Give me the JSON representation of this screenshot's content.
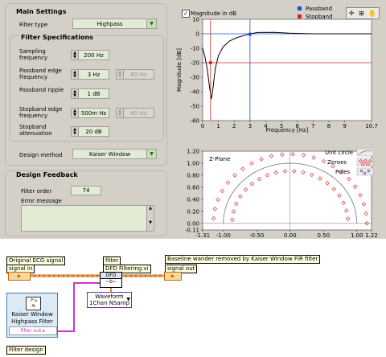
{
  "front_panel": {
    "main_settings": {
      "title": "Main Settings",
      "filter_type_label": "Filter type",
      "filter_type_value": "Highpass"
    },
    "filter_spec": {
      "title": "Filter Specifications",
      "sampling_label": "Sampling frequency",
      "sampling_value": "200 Hz",
      "passband_edge_label": "Passband edge frequency",
      "passband_edge_value": "3 Hz",
      "passband_edge_value2": "80 Hz",
      "passband_ripple_label": "Passband ripple",
      "passband_ripple_value": "1 dB",
      "stopband_edge_label": "Stopband edge frequency",
      "stopband_edge_value": "500m Hz",
      "stopband_edge_value2": "60 Hz",
      "stopband_atten_label": "Stopband attenuation",
      "stopband_atten_value": "20 dB"
    },
    "design_method_label": "Design method",
    "design_method_value": "Kaiser Window",
    "design_feedback": {
      "title": "Design Feedback",
      "filter_order_label": "Filter order",
      "filter_order_value": "74",
      "error_message_label": "Error message",
      "error_message_value": ""
    }
  },
  "magnitude_graph": {
    "checkbox_label": "Magnitude in dB",
    "checked": true,
    "legend": [
      {
        "label": "Passband",
        "color": "#1f4fcc"
      },
      {
        "label": "Stopband",
        "color": "#d42020"
      }
    ],
    "ylabel": "Magnitude [dB]",
    "xlabel": "Frequency [Hz]",
    "yticks": [
      "10",
      "0",
      "-10",
      "-20",
      "-30",
      "-40",
      "-50",
      "-60"
    ],
    "xticks": [
      "0",
      "1",
      "2",
      "3",
      "4",
      "5",
      "6",
      "7",
      "8",
      "9",
      "10.7"
    ]
  },
  "zplane_graph": {
    "title": "Z-Plane",
    "legend": [
      {
        "label": "Unit circle"
      },
      {
        "label": "Zeroes"
      },
      {
        "label": "Poles"
      }
    ],
    "yticks": [
      "1.20",
      "1.00",
      "0.80",
      "0.60",
      "0.40",
      "0.20",
      "0.00",
      "-0.11"
    ],
    "xticks": [
      "-1.31",
      "-1.00",
      "-0.50",
      "0.00",
      "0.50",
      "1.00",
      "1.22"
    ]
  },
  "chart_data": [
    {
      "type": "line",
      "title": "",
      "xlabel": "Frequency [Hz]",
      "ylabel": "Magnitude [dB]",
      "xlim": [
        0,
        10.7
      ],
      "ylim": [
        -60,
        10
      ],
      "series": [
        {
          "name": "",
          "x": [
            0,
            0.15,
            0.3,
            0.45,
            0.55,
            0.65,
            0.8,
            1.0,
            1.3,
            1.7,
            2.2,
            2.7,
            3.0,
            3.5,
            4.5,
            5.5,
            7,
            8.5,
            10.7
          ],
          "values": [
            -10,
            -16,
            -25,
            -38,
            -45,
            -38,
            -24,
            -15,
            -9,
            -5,
            -2.5,
            -1,
            0,
            0.9,
            1,
            0.4,
            0,
            0,
            0
          ]
        },
        {
          "name": "Passband",
          "x": [
            3,
            3
          ],
          "values": [
            -60,
            10
          ]
        },
        {
          "name": "Stopband",
          "x": [
            0.5,
            0.5
          ],
          "values": [
            -60,
            10
          ]
        }
      ],
      "markers": [
        {
          "series": "Passband",
          "x": 3,
          "y": -0.3
        },
        {
          "series": "Stopband",
          "x": 0.5,
          "y": -20
        }
      ],
      "hlines": [
        {
          "series": "Passband",
          "y": 0
        },
        {
          "series": "Stopband",
          "y": -20
        }
      ],
      "grid": false
    },
    {
      "type": "scatter",
      "title": "Z-Plane",
      "xlim": [
        -1.31,
        1.22
      ],
      "ylim": [
        -0.11,
        1.2
      ],
      "unit_circle": true,
      "zeroes_outer_radius": 1.15,
      "zeroes_inner_radius": 0.87,
      "zeroes_outer_angles_deg": [
        0,
        8,
        16,
        24,
        32,
        40,
        48,
        56,
        64,
        72,
        80,
        88,
        96,
        104,
        112,
        120,
        128,
        136,
        144,
        152,
        160,
        168,
        176
      ],
      "zeroes_inner_angles_deg": [
        5,
        14,
        23,
        32,
        41,
        50,
        59,
        68,
        77,
        86,
        95,
        104,
        113,
        122,
        131,
        140,
        149,
        158,
        167,
        176
      ],
      "poles": []
    }
  ],
  "block_diagram": {
    "original_ecg_label": "Original ECG signal",
    "signal_in_label": "signal in",
    "filter_label": "filter",
    "dfd_filtering_label": "DFD Filtering.vi",
    "baseline_label": "Baseline wander removed by Kaiser Window FIR filter",
    "signal_out_label": "signal out",
    "waveform_line1": "Waveform",
    "waveform_line2": "1Chan NSamp",
    "express_title_line1": "Kaiser Window",
    "express_title_line2": "Highpass Filter",
    "express_output": "filter out",
    "filter_design_label": "Filter design",
    "wire_color": "#cc6600",
    "cluster_wire_color": "#cc33cc"
  }
}
